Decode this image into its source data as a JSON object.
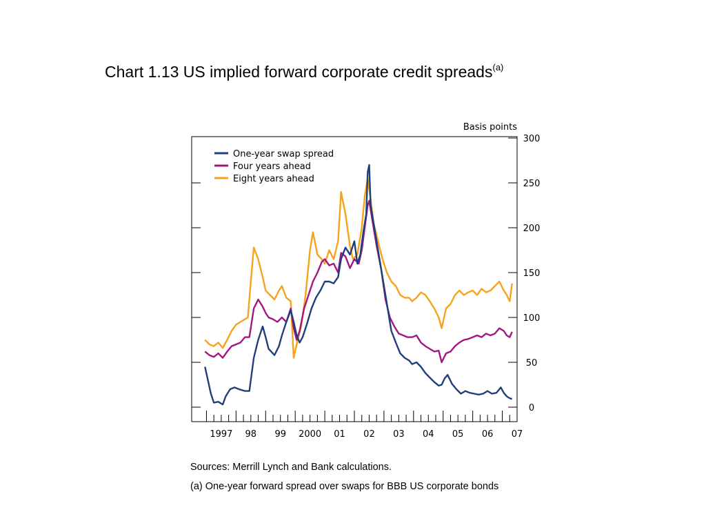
{
  "title": {
    "text": "Chart 1.13  US implied forward corporate credit spreads",
    "superscript": "(a)"
  },
  "notes": {
    "sources": "Sources:  Merrill Lynch and Bank calculations.",
    "footnote": "(a) One-year forward spread over swaps for BBB US corporate bonds"
  },
  "chart_data": {
    "type": "line",
    "ylabel": "Basis points",
    "ylim": [
      0,
      300
    ],
    "yticks": [
      0,
      50,
      100,
      150,
      200,
      250,
      300
    ],
    "xlim": [
      1996.5,
      2007.5
    ],
    "xticks": [
      {
        "label": "1997",
        "x": 1997.5
      },
      {
        "label": "98",
        "x": 1998.5
      },
      {
        "label": "99",
        "x": 1999.5
      },
      {
        "label": "2000",
        "x": 2000.5
      },
      {
        "label": "01",
        "x": 2001.5
      },
      {
        "label": "02",
        "x": 2002.5
      },
      {
        "label": "03",
        "x": 2003.5
      },
      {
        "label": "04",
        "x": 2004.5
      },
      {
        "label": "05",
        "x": 2005.5
      },
      {
        "label": "06",
        "x": 2006.5
      },
      {
        "label": "07",
        "x": 2007.5
      }
    ],
    "legend_position": "top-left",
    "grid": false,
    "series": [
      {
        "name": "One-year swap spread",
        "color": "#1f3f7a",
        "points": [
          [
            1996.95,
            45
          ],
          [
            1997.05,
            30
          ],
          [
            1997.15,
            15
          ],
          [
            1997.25,
            5
          ],
          [
            1997.4,
            6
          ],
          [
            1997.55,
            3
          ],
          [
            1997.65,
            12
          ],
          [
            1997.8,
            20
          ],
          [
            1997.95,
            22
          ],
          [
            1998.1,
            20
          ],
          [
            1998.3,
            18
          ],
          [
            1998.45,
            18
          ],
          [
            1998.6,
            55
          ],
          [
            1998.75,
            75
          ],
          [
            1998.9,
            90
          ],
          [
            1999.0,
            78
          ],
          [
            1999.1,
            65
          ],
          [
            1999.3,
            58
          ],
          [
            1999.45,
            68
          ],
          [
            1999.55,
            80
          ],
          [
            1999.7,
            95
          ],
          [
            1999.85,
            108
          ],
          [
            1999.95,
            95
          ],
          [
            2000.05,
            80
          ],
          [
            2000.15,
            72
          ],
          [
            2000.25,
            78
          ],
          [
            2000.4,
            93
          ],
          [
            2000.55,
            110
          ],
          [
            2000.7,
            122
          ],
          [
            2000.85,
            130
          ],
          [
            2001.0,
            140
          ],
          [
            2001.15,
            140
          ],
          [
            2001.3,
            138
          ],
          [
            2001.45,
            145
          ],
          [
            2001.55,
            165
          ],
          [
            2001.7,
            178
          ],
          [
            2001.85,
            170
          ],
          [
            2002.0,
            185
          ],
          [
            2002.1,
            160
          ],
          [
            2002.2,
            170
          ],
          [
            2002.3,
            195
          ],
          [
            2002.4,
            215
          ],
          [
            2002.45,
            262
          ],
          [
            2002.5,
            270
          ],
          [
            2002.55,
            225
          ],
          [
            2002.65,
            205
          ],
          [
            2002.8,
            175
          ],
          [
            2002.95,
            145
          ],
          [
            2003.1,
            115
          ],
          [
            2003.25,
            85
          ],
          [
            2003.4,
            72
          ],
          [
            2003.55,
            60
          ],
          [
            2003.7,
            55
          ],
          [
            2003.85,
            52
          ],
          [
            2003.95,
            48
          ],
          [
            2004.1,
            50
          ],
          [
            2004.25,
            45
          ],
          [
            2004.4,
            38
          ],
          [
            2004.55,
            33
          ],
          [
            2004.7,
            28
          ],
          [
            2004.85,
            24
          ],
          [
            2004.95,
            25
          ],
          [
            2005.05,
            32
          ],
          [
            2005.15,
            36
          ],
          [
            2005.3,
            26
          ],
          [
            2005.45,
            20
          ],
          [
            2005.6,
            15
          ],
          [
            2005.75,
            18
          ],
          [
            2005.9,
            16
          ],
          [
            2006.05,
            15
          ],
          [
            2006.2,
            14
          ],
          [
            2006.35,
            15
          ],
          [
            2006.5,
            18
          ],
          [
            2006.65,
            15
          ],
          [
            2006.8,
            16
          ],
          [
            2006.95,
            22
          ],
          [
            2007.05,
            16
          ],
          [
            2007.15,
            12
          ],
          [
            2007.25,
            10
          ],
          [
            2007.33,
            9
          ]
        ]
      },
      {
        "name": "Four years ahead",
        "color": "#a3167e",
        "points": [
          [
            1996.95,
            62
          ],
          [
            1997.1,
            58
          ],
          [
            1997.25,
            56
          ],
          [
            1997.4,
            60
          ],
          [
            1997.55,
            55
          ],
          [
            1997.7,
            62
          ],
          [
            1997.85,
            68
          ],
          [
            1998.0,
            70
          ],
          [
            1998.15,
            72
          ],
          [
            1998.3,
            78
          ],
          [
            1998.45,
            78
          ],
          [
            1998.6,
            110
          ],
          [
            1998.75,
            120
          ],
          [
            1998.9,
            112
          ],
          [
            1999.0,
            105
          ],
          [
            1999.1,
            100
          ],
          [
            1999.25,
            98
          ],
          [
            1999.4,
            95
          ],
          [
            1999.55,
            100
          ],
          [
            1999.7,
            95
          ],
          [
            1999.85,
            110
          ],
          [
            1999.95,
            88
          ],
          [
            2000.05,
            75
          ],
          [
            2000.15,
            85
          ],
          [
            2000.3,
            110
          ],
          [
            2000.45,
            125
          ],
          [
            2000.6,
            140
          ],
          [
            2000.75,
            150
          ],
          [
            2000.9,
            162
          ],
          [
            2001.0,
            165
          ],
          [
            2001.15,
            158
          ],
          [
            2001.3,
            160
          ],
          [
            2001.45,
            150
          ],
          [
            2001.55,
            172
          ],
          [
            2001.7,
            168
          ],
          [
            2001.85,
            155
          ],
          [
            2002.0,
            165
          ],
          [
            2002.15,
            160
          ],
          [
            2002.25,
            175
          ],
          [
            2002.35,
            200
          ],
          [
            2002.45,
            225
          ],
          [
            2002.5,
            230
          ],
          [
            2002.6,
            210
          ],
          [
            2002.75,
            180
          ],
          [
            2002.9,
            155
          ],
          [
            2003.05,
            120
          ],
          [
            2003.2,
            100
          ],
          [
            2003.35,
            90
          ],
          [
            2003.5,
            82
          ],
          [
            2003.65,
            80
          ],
          [
            2003.8,
            78
          ],
          [
            2003.95,
            78
          ],
          [
            2004.1,
            80
          ],
          [
            2004.25,
            72
          ],
          [
            2004.4,
            68
          ],
          [
            2004.55,
            65
          ],
          [
            2004.7,
            62
          ],
          [
            2004.85,
            63
          ],
          [
            2004.95,
            50
          ],
          [
            2005.1,
            60
          ],
          [
            2005.25,
            62
          ],
          [
            2005.4,
            68
          ],
          [
            2005.55,
            72
          ],
          [
            2005.7,
            75
          ],
          [
            2005.85,
            76
          ],
          [
            2006.0,
            78
          ],
          [
            2006.15,
            80
          ],
          [
            2006.3,
            78
          ],
          [
            2006.45,
            82
          ],
          [
            2006.6,
            80
          ],
          [
            2006.75,
            82
          ],
          [
            2006.9,
            88
          ],
          [
            2007.05,
            85
          ],
          [
            2007.15,
            80
          ],
          [
            2007.25,
            78
          ],
          [
            2007.33,
            84
          ]
        ]
      },
      {
        "name": "Eight years ahead",
        "color": "#f7a21a",
        "points": [
          [
            1996.95,
            75
          ],
          [
            1997.1,
            70
          ],
          [
            1997.25,
            68
          ],
          [
            1997.4,
            72
          ],
          [
            1997.55,
            66
          ],
          [
            1997.7,
            75
          ],
          [
            1997.85,
            85
          ],
          [
            1998.0,
            92
          ],
          [
            1998.15,
            95
          ],
          [
            1998.3,
            98
          ],
          [
            1998.4,
            100
          ],
          [
            1998.5,
            140
          ],
          [
            1998.6,
            178
          ],
          [
            1998.75,
            165
          ],
          [
            1998.9,
            145
          ],
          [
            1999.0,
            130
          ],
          [
            1999.15,
            125
          ],
          [
            1999.3,
            120
          ],
          [
            1999.45,
            130
          ],
          [
            1999.55,
            135
          ],
          [
            1999.7,
            122
          ],
          [
            1999.85,
            118
          ],
          [
            1999.95,
            55
          ],
          [
            2000.05,
            70
          ],
          [
            2000.2,
            90
          ],
          [
            2000.35,
            125
          ],
          [
            2000.5,
            175
          ],
          [
            2000.6,
            195
          ],
          [
            2000.75,
            170
          ],
          [
            2000.9,
            165
          ],
          [
            2001.0,
            160
          ],
          [
            2001.15,
            175
          ],
          [
            2001.3,
            165
          ],
          [
            2001.45,
            185
          ],
          [
            2001.55,
            240
          ],
          [
            2001.7,
            215
          ],
          [
            2001.85,
            180
          ],
          [
            2001.95,
            165
          ],
          [
            2002.1,
            170
          ],
          [
            2002.25,
            200
          ],
          [
            2002.35,
            235
          ],
          [
            2002.45,
            255
          ],
          [
            2002.55,
            232
          ],
          [
            2002.65,
            205
          ],
          [
            2002.8,
            185
          ],
          [
            2002.95,
            165
          ],
          [
            2003.1,
            150
          ],
          [
            2003.25,
            140
          ],
          [
            2003.4,
            135
          ],
          [
            2003.55,
            125
          ],
          [
            2003.7,
            122
          ],
          [
            2003.85,
            122
          ],
          [
            2003.95,
            118
          ],
          [
            2004.1,
            122
          ],
          [
            2004.25,
            128
          ],
          [
            2004.4,
            125
          ],
          [
            2004.55,
            118
          ],
          [
            2004.7,
            110
          ],
          [
            2004.85,
            100
          ],
          [
            2004.95,
            88
          ],
          [
            2005.1,
            110
          ],
          [
            2005.25,
            115
          ],
          [
            2005.4,
            125
          ],
          [
            2005.55,
            130
          ],
          [
            2005.7,
            125
          ],
          [
            2005.85,
            128
          ],
          [
            2006.0,
            130
          ],
          [
            2006.15,
            125
          ],
          [
            2006.3,
            132
          ],
          [
            2006.45,
            128
          ],
          [
            2006.6,
            130
          ],
          [
            2006.75,
            135
          ],
          [
            2006.9,
            140
          ],
          [
            2007.05,
            130
          ],
          [
            2007.15,
            125
          ],
          [
            2007.25,
            118
          ],
          [
            2007.33,
            138
          ]
        ]
      }
    ]
  }
}
